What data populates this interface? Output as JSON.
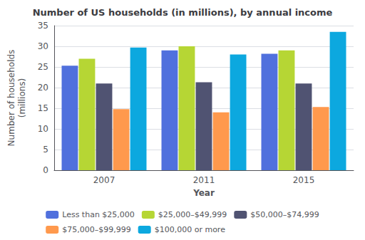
{
  "chart_data": {
    "type": "bar",
    "title": "Number of US households (in millions), by annual income",
    "xlabel": "Year",
    "ylabel": "Number of households\n(millions)",
    "categories": [
      "2007",
      "2011",
      "2015"
    ],
    "series": [
      {
        "name": "Less than $25,000",
        "values": [
          25.3,
          29.0,
          28.2
        ]
      },
      {
        "name": "$25,000–$49,999",
        "values": [
          27.0,
          30.0,
          29.0
        ]
      },
      {
        "name": "$50,000–$74,999",
        "values": [
          21.0,
          21.3,
          21.0
        ]
      },
      {
        "name": "$75,000–$99,999",
        "values": [
          14.8,
          14.0,
          15.3
        ]
      },
      {
        "name": "$100,000 or more",
        "values": [
          29.7,
          28.0,
          33.5
        ]
      }
    ],
    "ylim": [
      0,
      35
    ],
    "yticks": [
      0,
      5,
      10,
      15,
      20,
      25,
      30,
      35
    ],
    "grid": true,
    "legend": "bottom"
  }
}
